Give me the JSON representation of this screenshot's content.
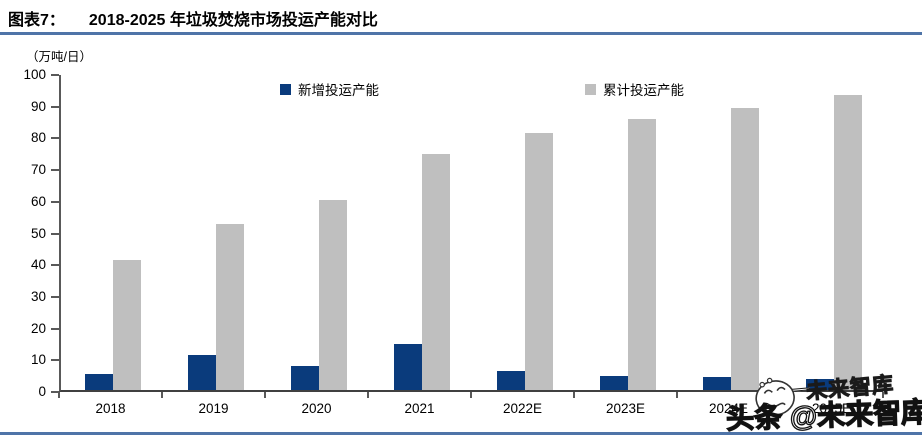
{
  "header": {
    "figure_label": "图表7：",
    "title": "2018-2025 年垃圾焚烧市场投运产能对比"
  },
  "chart_data": {
    "type": "bar",
    "title": "2018-2025 年垃圾焚烧市场投运产能对比",
    "unit_label": "（万吨/日）",
    "xlabel": "",
    "ylabel": "万吨/日",
    "categories": [
      "2018",
      "2019",
      "2020",
      "2021",
      "2022E",
      "2023E",
      "2024E",
      "2025E"
    ],
    "series": [
      {
        "name": "新增投运产能",
        "color": "#0A3B7C",
        "values": [
          5,
          11,
          7.5,
          14.5,
          6,
          4.5,
          4,
          3.5
        ]
      },
      {
        "name": "累计投运产能",
        "color": "#BFBFBF",
        "values": [
          41,
          52.5,
          60,
          74.5,
          81,
          85.5,
          89,
          93
        ]
      }
    ],
    "ylim": [
      0,
      100
    ],
    "ytick_step": 10,
    "grid": false,
    "legend_position": "top"
  },
  "watermark": {
    "big_text": "头条 @未来智库",
    "small_text": "未来智库",
    "face_icon": "smiley-face"
  },
  "colors": {
    "bar_new": "#0A3B7C",
    "bar_cumulative": "#BFBFBF",
    "rule_line": "#4F74A8",
    "axis_line": "#595959",
    "text": "#000000",
    "watermark_fill": "#FFFFFF",
    "watermark_outline": "#1A1A1A"
  }
}
